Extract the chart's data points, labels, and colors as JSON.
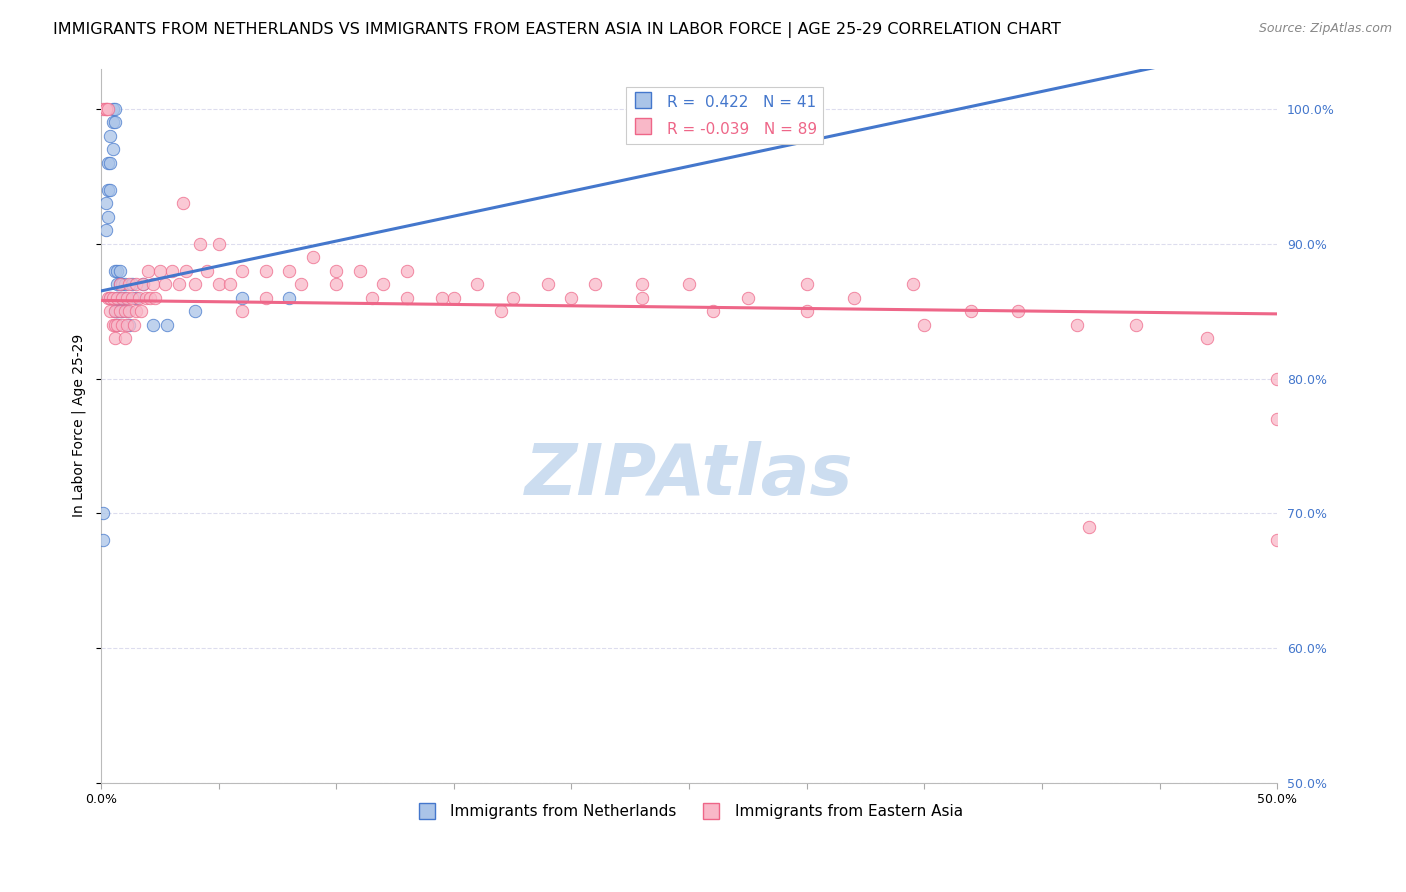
{
  "title": "IMMIGRANTS FROM NETHERLANDS VS IMMIGRANTS FROM EASTERN ASIA IN LABOR FORCE | AGE 25-29 CORRELATION CHART",
  "source": "Source: ZipAtlas.com",
  "ylabel": "In Labor Force | Age 25-29",
  "xlim": [
    0.0,
    0.5
  ],
  "ylim": [
    0.5,
    1.03
  ],
  "ytick_vals": [
    0.5,
    0.6,
    0.7,
    0.8,
    0.9,
    1.0
  ],
  "right_ytick_labels": [
    "50.0%",
    "60.0%",
    "70.0%",
    "80.0%",
    "90.0%",
    "100.0%"
  ],
  "nl_R": 0.422,
  "nl_N": 41,
  "ea_R": -0.039,
  "ea_N": 89,
  "nl_color": "#aac4e8",
  "ea_color": "#f9b8c8",
  "nl_line_color": "#4477cc",
  "ea_line_color": "#ee6688",
  "background_color": "#ffffff",
  "grid_color": "#ddddee",
  "watermark_color": "#ccddf0",
  "title_fontsize": 11.5,
  "source_fontsize": 9,
  "axis_label_fontsize": 10,
  "tick_fontsize": 9,
  "right_tick_color": "#4477cc",
  "nl_x": [
    0.001,
    0.001,
    0.002,
    0.002,
    0.003,
    0.003,
    0.003,
    0.004,
    0.004,
    0.004,
    0.004,
    0.005,
    0.005,
    0.005,
    0.006,
    0.006,
    0.006,
    0.006,
    0.007,
    0.007,
    0.007,
    0.007,
    0.007,
    0.008,
    0.008,
    0.008,
    0.008,
    0.009,
    0.009,
    0.01,
    0.01,
    0.011,
    0.012,
    0.013,
    0.015,
    0.018,
    0.022,
    0.028,
    0.04,
    0.06,
    0.08
  ],
  "nl_y": [
    0.68,
    0.7,
    0.93,
    0.91,
    0.96,
    0.94,
    0.92,
    0.98,
    0.96,
    0.94,
    0.86,
    1.0,
    0.99,
    0.97,
    1.0,
    0.99,
    0.88,
    0.85,
    0.88,
    0.87,
    0.86,
    0.85,
    0.84,
    0.88,
    0.87,
    0.86,
    0.85,
    0.87,
    0.85,
    0.87,
    0.86,
    0.85,
    0.84,
    0.87,
    0.86,
    0.87,
    0.84,
    0.84,
    0.85,
    0.86,
    0.86
  ],
  "ea_x": [
    0.001,
    0.002,
    0.002,
    0.003,
    0.003,
    0.004,
    0.004,
    0.005,
    0.005,
    0.006,
    0.006,
    0.006,
    0.007,
    0.007,
    0.008,
    0.008,
    0.009,
    0.009,
    0.01,
    0.01,
    0.011,
    0.011,
    0.012,
    0.012,
    0.013,
    0.014,
    0.015,
    0.015,
    0.016,
    0.017,
    0.018,
    0.019,
    0.02,
    0.021,
    0.022,
    0.023,
    0.025,
    0.027,
    0.03,
    0.033,
    0.036,
    0.04,
    0.045,
    0.05,
    0.06,
    0.07,
    0.08,
    0.09,
    0.1,
    0.11,
    0.12,
    0.13,
    0.145,
    0.16,
    0.175,
    0.19,
    0.21,
    0.23,
    0.25,
    0.275,
    0.3,
    0.32,
    0.345,
    0.37,
    0.39,
    0.415,
    0.44,
    0.47,
    0.5,
    0.5,
    0.5,
    0.035,
    0.042,
    0.05,
    0.06,
    0.055,
    0.07,
    0.085,
    0.1,
    0.115,
    0.13,
    0.15,
    0.17,
    0.2,
    0.23,
    0.26,
    0.3,
    0.35,
    0.42
  ],
  "ea_y": [
    1.0,
    1.0,
    1.0,
    1.0,
    0.86,
    0.86,
    0.85,
    0.84,
    0.86,
    0.85,
    0.84,
    0.83,
    0.86,
    0.84,
    0.87,
    0.85,
    0.86,
    0.84,
    0.85,
    0.83,
    0.86,
    0.84,
    0.87,
    0.85,
    0.86,
    0.84,
    0.87,
    0.85,
    0.86,
    0.85,
    0.87,
    0.86,
    0.88,
    0.86,
    0.87,
    0.86,
    0.88,
    0.87,
    0.88,
    0.87,
    0.88,
    0.87,
    0.88,
    0.87,
    0.85,
    0.86,
    0.88,
    0.89,
    0.88,
    0.88,
    0.87,
    0.88,
    0.86,
    0.87,
    0.86,
    0.87,
    0.87,
    0.86,
    0.87,
    0.86,
    0.87,
    0.86,
    0.87,
    0.85,
    0.85,
    0.84,
    0.84,
    0.83,
    0.8,
    0.77,
    0.68,
    0.93,
    0.9,
    0.9,
    0.88,
    0.87,
    0.88,
    0.87,
    0.87,
    0.86,
    0.86,
    0.86,
    0.85,
    0.86,
    0.87,
    0.85,
    0.85,
    0.84,
    0.69
  ]
}
